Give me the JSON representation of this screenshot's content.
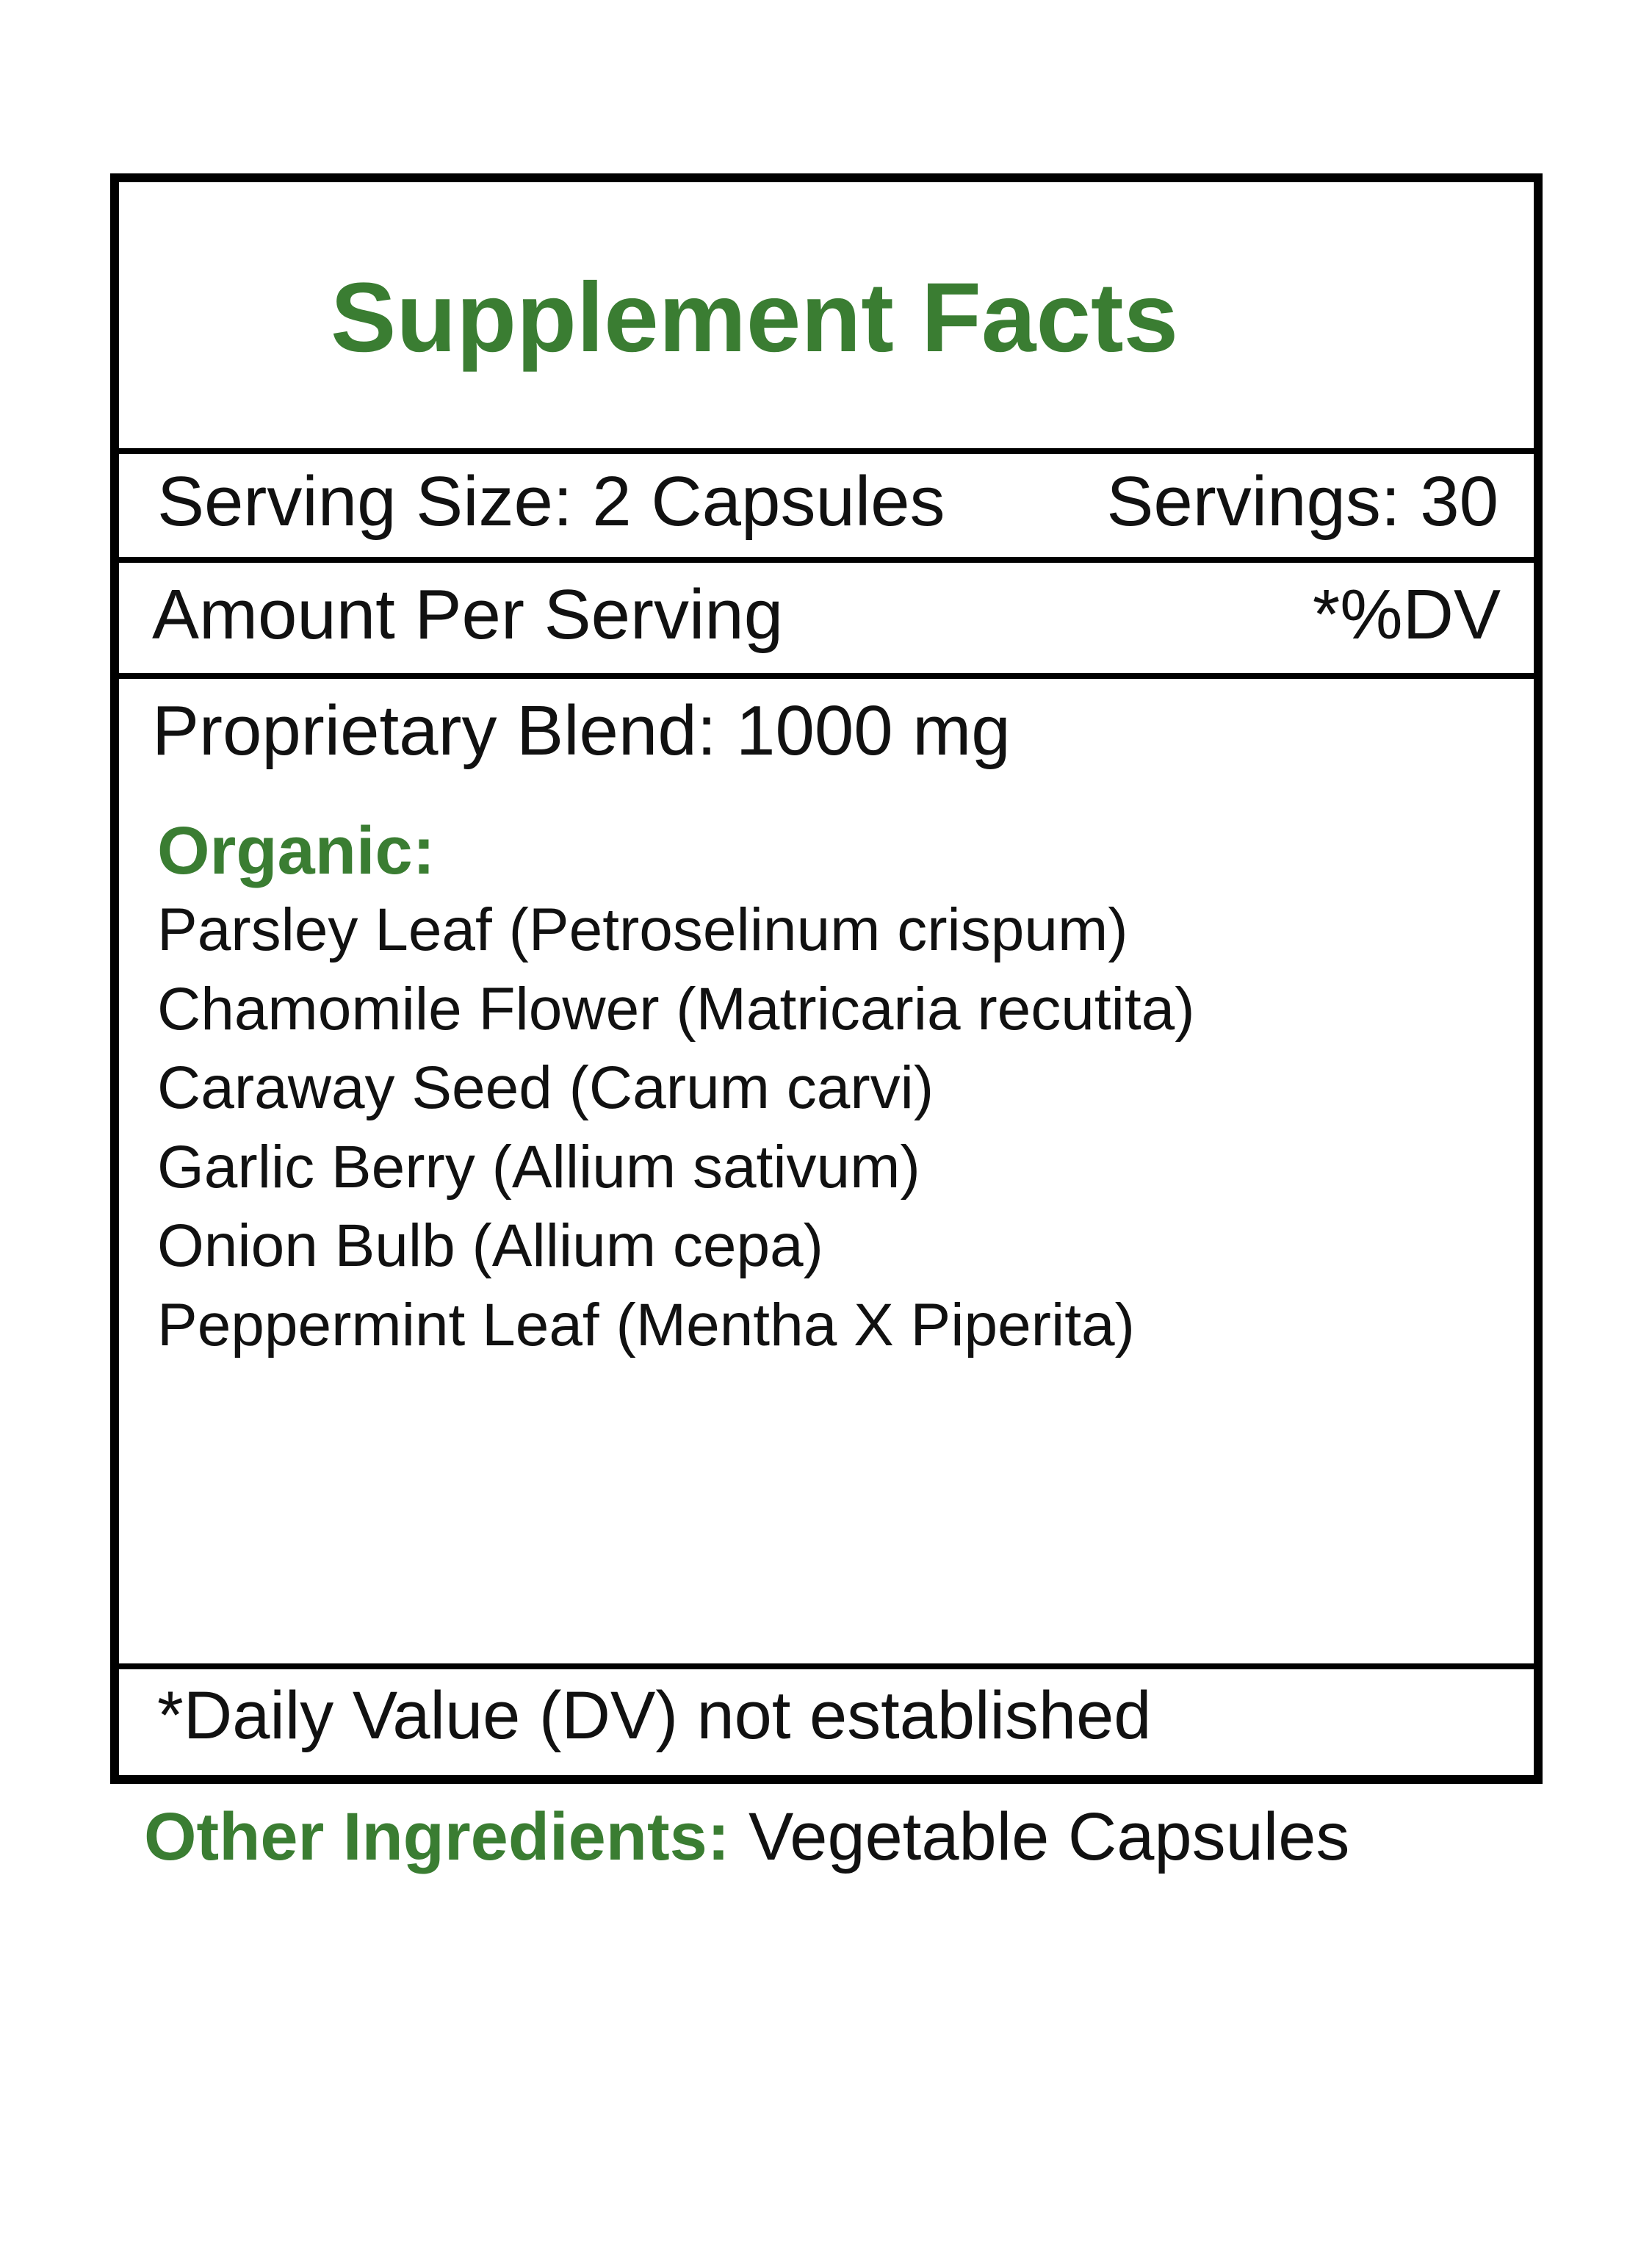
{
  "colors": {
    "accent": "#3a7d32",
    "border": "#000000"
  },
  "title": "Supplement Facts",
  "serving_size": "Serving Size: 2 Capsules",
  "servings": "Servings: 30",
  "amount_per_serving": "Amount Per Serving",
  "dv_header": "*%DV",
  "blend": "Proprietary Blend: 1000 mg",
  "organic_label": "Organic:",
  "ingredients": [
    "Parsley Leaf (Petroselinum crispum)",
    "Chamomile Flower (Matricaria recutita)",
    "Caraway Seed (Carum carvi)",
    "Garlic Berry (Allium sativum)",
    "Onion Bulb (Allium cepa)",
    "Peppermint Leaf (Mentha X Piperita)"
  ],
  "footnote": "*Daily Value (DV) not established",
  "other_label": "Other Ingredients:",
  "other_value": "Vegetable Capsules"
}
